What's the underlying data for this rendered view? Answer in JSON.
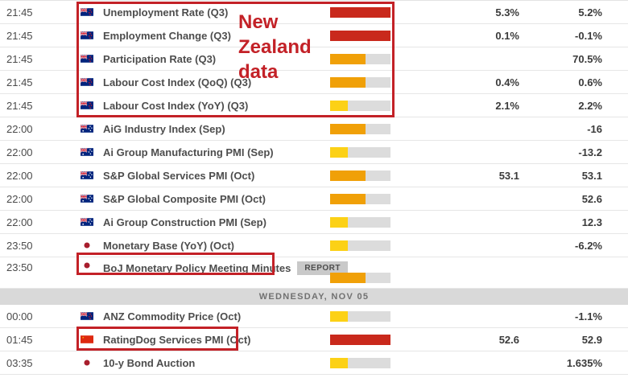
{
  "app": {
    "type": "economic-calendar"
  },
  "colors": {
    "impact_high": "#c9291c",
    "impact_medium": "#f0a008",
    "impact_low": "#fcd116",
    "bar_track": "#dcdcdc",
    "annotation_red": "#c32127",
    "day_header_bg": "#d9d9d9"
  },
  "annotations": {
    "note_text": "New Zealand data"
  },
  "table": {
    "rows": [
      {
        "type": "event",
        "time": "21:45",
        "flag": "new-zealand",
        "event": "Unemployment Rate (Q3)",
        "impact": "high",
        "forecast": "5.3%",
        "previous": "5.2%"
      },
      {
        "type": "event",
        "time": "21:45",
        "flag": "new-zealand",
        "event": "Employment Change (Q3)",
        "impact": "high",
        "forecast": "0.1%",
        "previous": "-0.1%"
      },
      {
        "type": "event",
        "time": "21:45",
        "flag": "new-zealand",
        "event": "Participation Rate (Q3)",
        "impact": "medium",
        "forecast": "",
        "previous": "70.5%"
      },
      {
        "type": "event",
        "time": "21:45",
        "flag": "new-zealand",
        "event": "Labour Cost Index (QoQ) (Q3)",
        "impact": "medium",
        "forecast": "0.4%",
        "previous": "0.6%"
      },
      {
        "type": "event",
        "time": "21:45",
        "flag": "new-zealand",
        "event": "Labour Cost Index (YoY) (Q3)",
        "impact": "low",
        "forecast": "2.1%",
        "previous": "2.2%"
      },
      {
        "type": "event",
        "time": "22:00",
        "flag": "australia",
        "event": "AiG Industry Index (Sep)",
        "impact": "medium",
        "forecast": "",
        "previous": "-16"
      },
      {
        "type": "event",
        "time": "22:00",
        "flag": "australia",
        "event": "Ai Group Manufacturing PMI (Sep)",
        "impact": "low",
        "forecast": "",
        "previous": "-13.2"
      },
      {
        "type": "event",
        "time": "22:00",
        "flag": "australia",
        "event": "S&P Global Services PMI (Oct)",
        "impact": "medium",
        "forecast": "53.1",
        "previous": "53.1"
      },
      {
        "type": "event",
        "time": "22:00",
        "flag": "australia",
        "event": "S&P Global Composite PMI (Oct)",
        "impact": "medium",
        "forecast": "",
        "previous": "52.6"
      },
      {
        "type": "event",
        "time": "22:00",
        "flag": "australia",
        "event": "Ai Group Construction PMI (Sep)",
        "impact": "low",
        "forecast": "",
        "previous": "12.3"
      },
      {
        "type": "event",
        "time": "23:50",
        "flag": "japan",
        "event": "Monetary Base (YoY) (Oct)",
        "impact": "low",
        "forecast": "",
        "previous": "-6.2%"
      },
      {
        "type": "event",
        "time": "23:50",
        "flag": "japan",
        "event": "BoJ Monetary Policy Meeting Minutes",
        "impact": "medium",
        "badge": "REPORT",
        "tall": true,
        "forecast": "",
        "previous": ""
      },
      {
        "type": "day-header",
        "label": "WEDNESDAY, NOV 05"
      },
      {
        "type": "event",
        "time": "00:00",
        "flag": "new-zealand",
        "event": "ANZ Commodity Price (Oct)",
        "impact": "low",
        "forecast": "",
        "previous": "-1.1%"
      },
      {
        "type": "event",
        "time": "01:45",
        "flag": "china",
        "event": "RatingDog Services PMI (Oct)",
        "impact": "high",
        "forecast": "52.6",
        "previous": "52.9"
      },
      {
        "type": "event",
        "time": "03:35",
        "flag": "japan",
        "event": "10-y Bond Auction",
        "impact": "low",
        "forecast": "",
        "previous": "1.635%"
      }
    ]
  }
}
